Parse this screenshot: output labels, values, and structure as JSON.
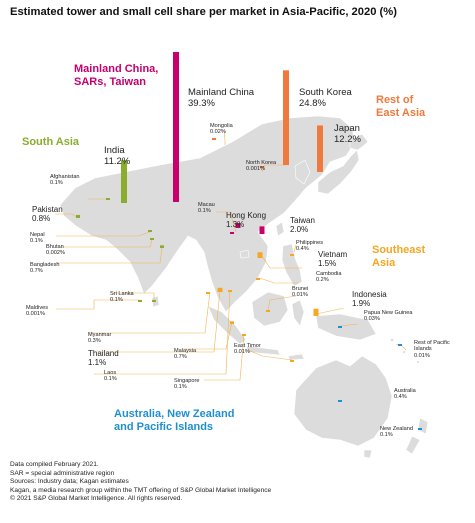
{
  "title": "Estimated tower and small cell share per market in Asia-Pacific, 2020 (%)",
  "colors": {
    "china_group": "#c7006e",
    "east_asia": "#f07a3d",
    "south_asia": "#8aad2e",
    "southeast_asia": "#f5a623",
    "oceania": "#1e8fd0",
    "land": "#dcdcdc",
    "leader": "#f0b450"
  },
  "regions": {
    "china_group": [
      "Mainland China,",
      "SARs, Taiwan"
    ],
    "east_asia": [
      "Rest of",
      "East Asia"
    ],
    "south_asia": [
      "South Asia"
    ],
    "southeast_asia": [
      "Southeast",
      "Asia"
    ],
    "oceania": [
      "Australia, New Zealand",
      "and Pacific Islands"
    ]
  },
  "markets": [
    {
      "name": "Mainland China",
      "value": "39.3%",
      "share": 39.3,
      "group": "china_group"
    },
    {
      "name": "South Korea",
      "value": "24.8%",
      "share": 24.8,
      "group": "east_asia"
    },
    {
      "name": "Japan",
      "value": "12.2%",
      "share": 12.2,
      "group": "east_asia"
    },
    {
      "name": "India",
      "value": "11.2%",
      "share": 11.2,
      "group": "south_asia"
    },
    {
      "name": "Mongolia",
      "value": "0.02%",
      "share": 0.02,
      "group": "east_asia"
    },
    {
      "name": "North Korea",
      "value": "0.001%",
      "share": 0.001,
      "group": "east_asia"
    },
    {
      "name": "Afghanistan",
      "value": "0.1%",
      "share": 0.1,
      "group": "south_asia"
    },
    {
      "name": "Pakistan",
      "value": "0.8%",
      "share": 0.8,
      "group": "south_asia"
    },
    {
      "name": "Nepal",
      "value": "0.1%",
      "share": 0.1,
      "group": "south_asia"
    },
    {
      "name": "Bhutan",
      "value": "0.002%",
      "share": 0.002,
      "group": "south_asia"
    },
    {
      "name": "Bangladesh",
      "value": "0.7%",
      "share": 0.7,
      "group": "south_asia"
    },
    {
      "name": "Sri Lanka",
      "value": "0.1%",
      "share": 0.1,
      "group": "south_asia"
    },
    {
      "name": "Maldives",
      "value": "0.001%",
      "share": 0.001,
      "group": "south_asia"
    },
    {
      "name": "Macau",
      "value": "0.1%",
      "share": 0.1,
      "group": "china_group"
    },
    {
      "name": "Hong Kong",
      "value": "1.3%",
      "share": 1.3,
      "group": "china_group"
    },
    {
      "name": "Taiwan",
      "value": "2.0%",
      "share": 2.0,
      "group": "china_group"
    },
    {
      "name": "Philippines",
      "value": "0.4%",
      "share": 0.4,
      "group": "southeast_asia"
    },
    {
      "name": "Vietnam",
      "value": "1.5%",
      "share": 1.5,
      "group": "southeast_asia"
    },
    {
      "name": "Cambodia",
      "value": "0.2%",
      "share": 0.2,
      "group": "southeast_asia"
    },
    {
      "name": "Brunei",
      "value": "0.01%",
      "share": 0.01,
      "group": "southeast_asia"
    },
    {
      "name": "Indonesia",
      "value": "1.9%",
      "share": 1.9,
      "group": "southeast_asia"
    },
    {
      "name": "Papua New Guinea",
      "value": "0.03%",
      "share": 0.03,
      "group": "oceania"
    },
    {
      "name": "Myanmar",
      "value": "0.3%",
      "share": 0.3,
      "group": "southeast_asia"
    },
    {
      "name": "Thailand",
      "value": "1.1%",
      "share": 1.1,
      "group": "southeast_asia"
    },
    {
      "name": "Laos",
      "value": "0.1%",
      "share": 0.1,
      "group": "southeast_asia"
    },
    {
      "name": "Malaysia",
      "value": "0.7%",
      "share": 0.7,
      "group": "southeast_asia"
    },
    {
      "name": "East Timor",
      "value": "0.01%",
      "share": 0.01,
      "group": "southeast_asia"
    },
    {
      "name": "Singapore",
      "value": "0.1%",
      "share": 0.1,
      "group": "southeast_asia"
    },
    {
      "name": "Rest of Pacific Islands",
      "value": "0.01%",
      "share": 0.01,
      "group": "oceania"
    },
    {
      "name": "Australia",
      "value": "0.4%",
      "share": 0.4,
      "group": "oceania"
    },
    {
      "name": "New Zealand",
      "value": "0.1%",
      "share": 0.1,
      "group": "oceania"
    }
  ],
  "footer": [
    "Data compiled February 2021.",
    "SAR = special administrative region",
    "Sources: Industry data; Kagan estimates",
    "Kagan, a media research group within the TMT offering of S&P Global Market Intelligence",
    "© 2021 S&P Global Market Intelligence. All rights reserved."
  ]
}
